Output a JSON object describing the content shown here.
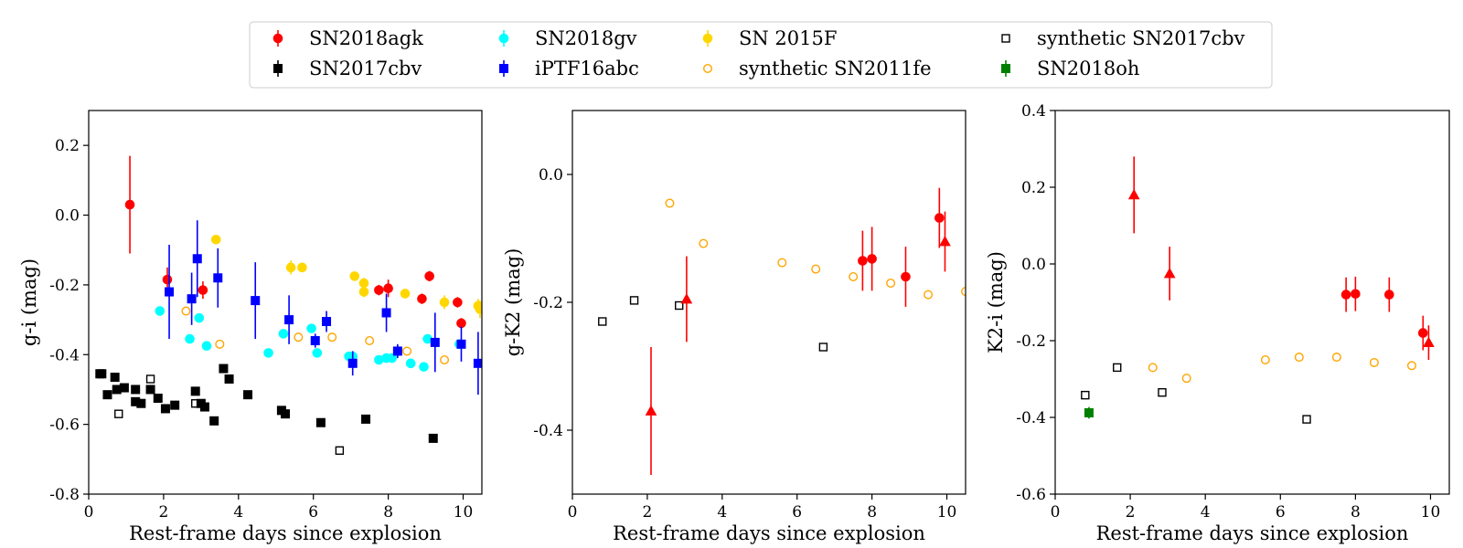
{
  "legend": [
    {
      "label": "SN2018agk",
      "color": "#ff0000",
      "marker": "circle",
      "fill": true,
      "errorbar": true
    },
    {
      "label": "SN2018gv",
      "color": "#00ffff",
      "marker": "circle",
      "fill": true,
      "errorbar": true
    },
    {
      "label": "SN 2015F",
      "color": "#ffd700",
      "marker": "circle",
      "fill": true,
      "errorbar": true
    },
    {
      "label": "synthetic SN2017cbv",
      "color": "#000000",
      "marker": "square",
      "fill": false,
      "errorbar": false
    },
    {
      "label": "SN2017cbv",
      "color": "#000000",
      "marker": "square",
      "fill": true,
      "errorbar": true
    },
    {
      "label": "iPTF16abc",
      "color": "#0000ff",
      "marker": "square",
      "fill": true,
      "errorbar": true
    },
    {
      "label": "synthetic SN2011fe",
      "color": "#ffa500",
      "marker": "circle",
      "fill": false,
      "errorbar": false
    },
    {
      "label": "SN2018oh",
      "color": "#008000",
      "marker": "square",
      "fill": true,
      "errorbar": true
    }
  ],
  "chart_data": [
    {
      "type": "scatter",
      "xlabel": "Rest-frame days since explosion",
      "ylabel": "g-i (mag)",
      "xlim": [
        0,
        10.5
      ],
      "ylim": [
        -0.8,
        0.3
      ],
      "xticks": [
        0,
        2,
        4,
        6,
        8,
        10
      ],
      "yticks": [
        -0.8,
        -0.6,
        -0.4,
        -0.2,
        0.0,
        0.2
      ],
      "xtick_labels": [
        "0",
        "2",
        "4",
        "6",
        "8",
        "10"
      ],
      "ytick_labels": [
        "-0.8",
        "-0.6",
        "-0.4",
        "-0.2",
        "0.0",
        "0.2"
      ],
      "series": [
        {
          "name": "SN2017cbv",
          "marker": "square",
          "color": "#000000",
          "fill": true,
          "points": [
            [
              0.3,
              -0.455
            ],
            [
              0.35,
              -0.455
            ],
            [
              0.5,
              -0.515
            ],
            [
              0.7,
              -0.465
            ],
            [
              0.75,
              -0.5
            ],
            [
              0.95,
              -0.495
            ],
            [
              1.25,
              -0.5
            ],
            [
              1.25,
              -0.535
            ],
            [
              1.4,
              -0.54
            ],
            [
              1.65,
              -0.5
            ],
            [
              1.85,
              -0.525
            ],
            [
              2.05,
              -0.555
            ],
            [
              2.3,
              -0.545
            ],
            [
              2.85,
              -0.505
            ],
            [
              3.0,
              -0.54
            ],
            [
              3.1,
              -0.55
            ],
            [
              3.35,
              -0.59
            ],
            [
              3.6,
              -0.44
            ],
            [
              3.75,
              -0.47
            ],
            [
              4.25,
              -0.515
            ],
            [
              5.15,
              -0.56
            ],
            [
              5.25,
              -0.57
            ],
            [
              6.2,
              -0.595
            ],
            [
              7.4,
              -0.585
            ],
            [
              9.2,
              -0.64
            ]
          ]
        },
        {
          "name": "synthetic SN2017cbv",
          "marker": "square",
          "color": "#000000",
          "fill": false,
          "points": [
            [
              0.8,
              -0.57
            ],
            [
              1.65,
              -0.47
            ],
            [
              2.85,
              -0.54
            ],
            [
              6.7,
              -0.675
            ]
          ]
        },
        {
          "name": "SN2018agk",
          "marker": "circle",
          "color": "#ff0000",
          "fill": true,
          "points": [
            [
              1.1,
              0.03,
              0.14
            ],
            [
              2.1,
              -0.185,
              0.035
            ],
            [
              3.05,
              -0.215,
              0.025
            ],
            [
              7.75,
              -0.215,
              0.015
            ],
            [
              8.0,
              -0.21,
              0.025
            ],
            [
              8.9,
              -0.24,
              0.015
            ],
            [
              9.1,
              -0.175,
              0.015
            ],
            [
              9.85,
              -0.25,
              0.015
            ],
            [
              9.95,
              -0.31,
              0.015
            ]
          ]
        },
        {
          "name": "SN2018gv",
          "marker": "circle",
          "color": "#00ffff",
          "fill": true,
          "points": [
            [
              1.9,
              -0.275
            ],
            [
              2.7,
              -0.355
            ],
            [
              2.95,
              -0.295
            ],
            [
              3.15,
              -0.375
            ],
            [
              4.8,
              -0.395
            ],
            [
              5.2,
              -0.34
            ],
            [
              5.95,
              -0.325
            ],
            [
              6.1,
              -0.395
            ],
            [
              6.95,
              -0.405
            ],
            [
              7.05,
              -0.405
            ],
            [
              7.75,
              -0.415
            ],
            [
              7.95,
              -0.41
            ],
            [
              8.1,
              -0.41
            ],
            [
              8.6,
              -0.425
            ],
            [
              8.95,
              -0.435
            ],
            [
              9.05,
              -0.355
            ],
            [
              9.9,
              -0.37
            ]
          ]
        },
        {
          "name": "iPTF16abc",
          "marker": "square",
          "color": "#0000ff",
          "fill": true,
          "points": [
            [
              2.15,
              -0.22,
              0.135
            ],
            [
              2.75,
              -0.24,
              0.075
            ],
            [
              2.9,
              -0.125,
              0.11
            ],
            [
              3.45,
              -0.18,
              0.085
            ],
            [
              4.45,
              -0.245,
              0.11
            ],
            [
              5.35,
              -0.3,
              0.07
            ],
            [
              6.05,
              -0.36,
              0.02
            ],
            [
              6.35,
              -0.305,
              0.03
            ],
            [
              7.05,
              -0.425,
              0.035
            ],
            [
              7.95,
              -0.28,
              0.055
            ],
            [
              8.25,
              -0.39,
              0.02
            ],
            [
              9.25,
              -0.365,
              0.085
            ],
            [
              9.95,
              -0.37,
              0.05
            ],
            [
              10.4,
              -0.425,
              0.09
            ]
          ]
        },
        {
          "name": "SN 2015F",
          "marker": "circle",
          "color": "#ffd700",
          "fill": true,
          "points": [
            [
              3.4,
              -0.07,
              0.01
            ],
            [
              5.4,
              -0.15,
              0.02
            ],
            [
              5.7,
              -0.15,
              0.01
            ],
            [
              7.1,
              -0.175,
              0.01
            ],
            [
              7.35,
              -0.195,
              0.015
            ],
            [
              7.35,
              -0.22,
              0.015
            ],
            [
              8.45,
              -0.225,
              0.01
            ],
            [
              9.5,
              -0.25,
              0.02
            ],
            [
              10.4,
              -0.26,
              0.02
            ],
            [
              10.45,
              -0.27,
              0.025
            ]
          ]
        },
        {
          "name": "synthetic SN2011fe",
          "marker": "circle",
          "color": "#ffa500",
          "fill": false,
          "points": [
            [
              2.6,
              -0.275
            ],
            [
              3.5,
              -0.37
            ],
            [
              5.6,
              -0.35
            ],
            [
              6.5,
              -0.35
            ],
            [
              7.5,
              -0.36
            ],
            [
              8.5,
              -0.39
            ],
            [
              9.5,
              -0.415
            ]
          ]
        }
      ]
    },
    {
      "type": "scatter",
      "xlabel": "Rest-frame days since explosion",
      "ylabel": "g-K2 (mag)",
      "xlim": [
        0,
        10.5
      ],
      "ylim": [
        -0.5,
        0.1
      ],
      "xticks": [
        0,
        2,
        4,
        6,
        8,
        10
      ],
      "yticks": [
        -0.4,
        -0.2,
        0.0
      ],
      "xtick_labels": [
        "0",
        "2",
        "4",
        "6",
        "8",
        "10"
      ],
      "ytick_labels": [
        "-0.4",
        "-0.2",
        "0.0"
      ],
      "series": [
        {
          "name": "synthetic SN2017cbv",
          "marker": "square",
          "color": "#000000",
          "fill": false,
          "points": [
            [
              0.8,
              -0.23
            ],
            [
              1.65,
              -0.197
            ],
            [
              2.85,
              -0.205
            ],
            [
              6.7,
              -0.27
            ]
          ]
        },
        {
          "name": "synthetic SN2011fe",
          "marker": "circle",
          "color": "#ffa500",
          "fill": false,
          "points": [
            [
              2.6,
              -0.045
            ],
            [
              3.5,
              -0.108
            ],
            [
              5.6,
              -0.138
            ],
            [
              6.5,
              -0.148
            ],
            [
              7.5,
              -0.16
            ],
            [
              8.5,
              -0.17
            ],
            [
              9.5,
              -0.188
            ],
            [
              10.5,
              -0.183
            ]
          ]
        },
        {
          "name": "SN2018agk",
          "marker": "triangle",
          "color": "#ff0000",
          "fill": true,
          "points": [
            [
              2.1,
              -0.37,
              0.1
            ],
            [
              3.05,
              -0.195,
              0.067
            ],
            [
              9.95,
              -0.105,
              0.047
            ]
          ]
        },
        {
          "name": "SN2018agk",
          "marker": "circle",
          "color": "#ff0000",
          "fill": true,
          "points": [
            [
              7.75,
              -0.135,
              0.047
            ],
            [
              8.0,
              -0.132,
              0.05
            ],
            [
              8.9,
              -0.16,
              0.047
            ],
            [
              9.8,
              -0.068,
              0.047
            ]
          ]
        }
      ]
    },
    {
      "type": "scatter",
      "xlabel": "Rest-frame days since explosion",
      "ylabel": "K2-i (mag)",
      "xlim": [
        0,
        10.5
      ],
      "ylim": [
        -0.6,
        0.4
      ],
      "xticks": [
        0,
        2,
        4,
        6,
        8,
        10
      ],
      "yticks": [
        -0.6,
        -0.4,
        -0.2,
        0.0,
        0.2,
        0.4
      ],
      "xtick_labels": [
        "0",
        "2",
        "4",
        "6",
        "8",
        "10"
      ],
      "ytick_labels": [
        "-0.6",
        "-0.4",
        "-0.2",
        "0.0",
        "0.2",
        "0.4"
      ],
      "series": [
        {
          "name": "synthetic SN2017cbv",
          "marker": "square",
          "color": "#000000",
          "fill": false,
          "points": [
            [
              0.8,
              -0.342
            ],
            [
              1.65,
              -0.27
            ],
            [
              2.85,
              -0.335
            ],
            [
              6.7,
              -0.405
            ]
          ]
        },
        {
          "name": "synthetic SN2011fe",
          "marker": "circle",
          "color": "#ffa500",
          "fill": false,
          "points": [
            [
              2.6,
              -0.27
            ],
            [
              3.5,
              -0.298
            ],
            [
              5.6,
              -0.25
            ],
            [
              6.5,
              -0.243
            ],
            [
              7.5,
              -0.243
            ],
            [
              8.5,
              -0.257
            ],
            [
              9.5,
              -0.265
            ]
          ]
        },
        {
          "name": "SN2018oh",
          "marker": "square",
          "color": "#008000",
          "fill": true,
          "points": [
            [
              0.9,
              -0.388,
              0.015
            ]
          ]
        },
        {
          "name": "SN2018agk",
          "marker": "triangle",
          "color": "#ff0000",
          "fill": true,
          "points": [
            [
              2.1,
              0.18,
              0.1
            ],
            [
              3.05,
              -0.025,
              0.07
            ],
            [
              9.95,
              -0.205,
              0.045
            ]
          ]
        },
        {
          "name": "SN2018agk",
          "marker": "circle",
          "color": "#ff0000",
          "fill": true,
          "points": [
            [
              7.75,
              -0.08,
              0.045
            ],
            [
              8.0,
              -0.078,
              0.045
            ],
            [
              8.9,
              -0.08,
              0.045
            ],
            [
              9.8,
              -0.18,
              0.045
            ]
          ]
        }
      ]
    }
  ]
}
